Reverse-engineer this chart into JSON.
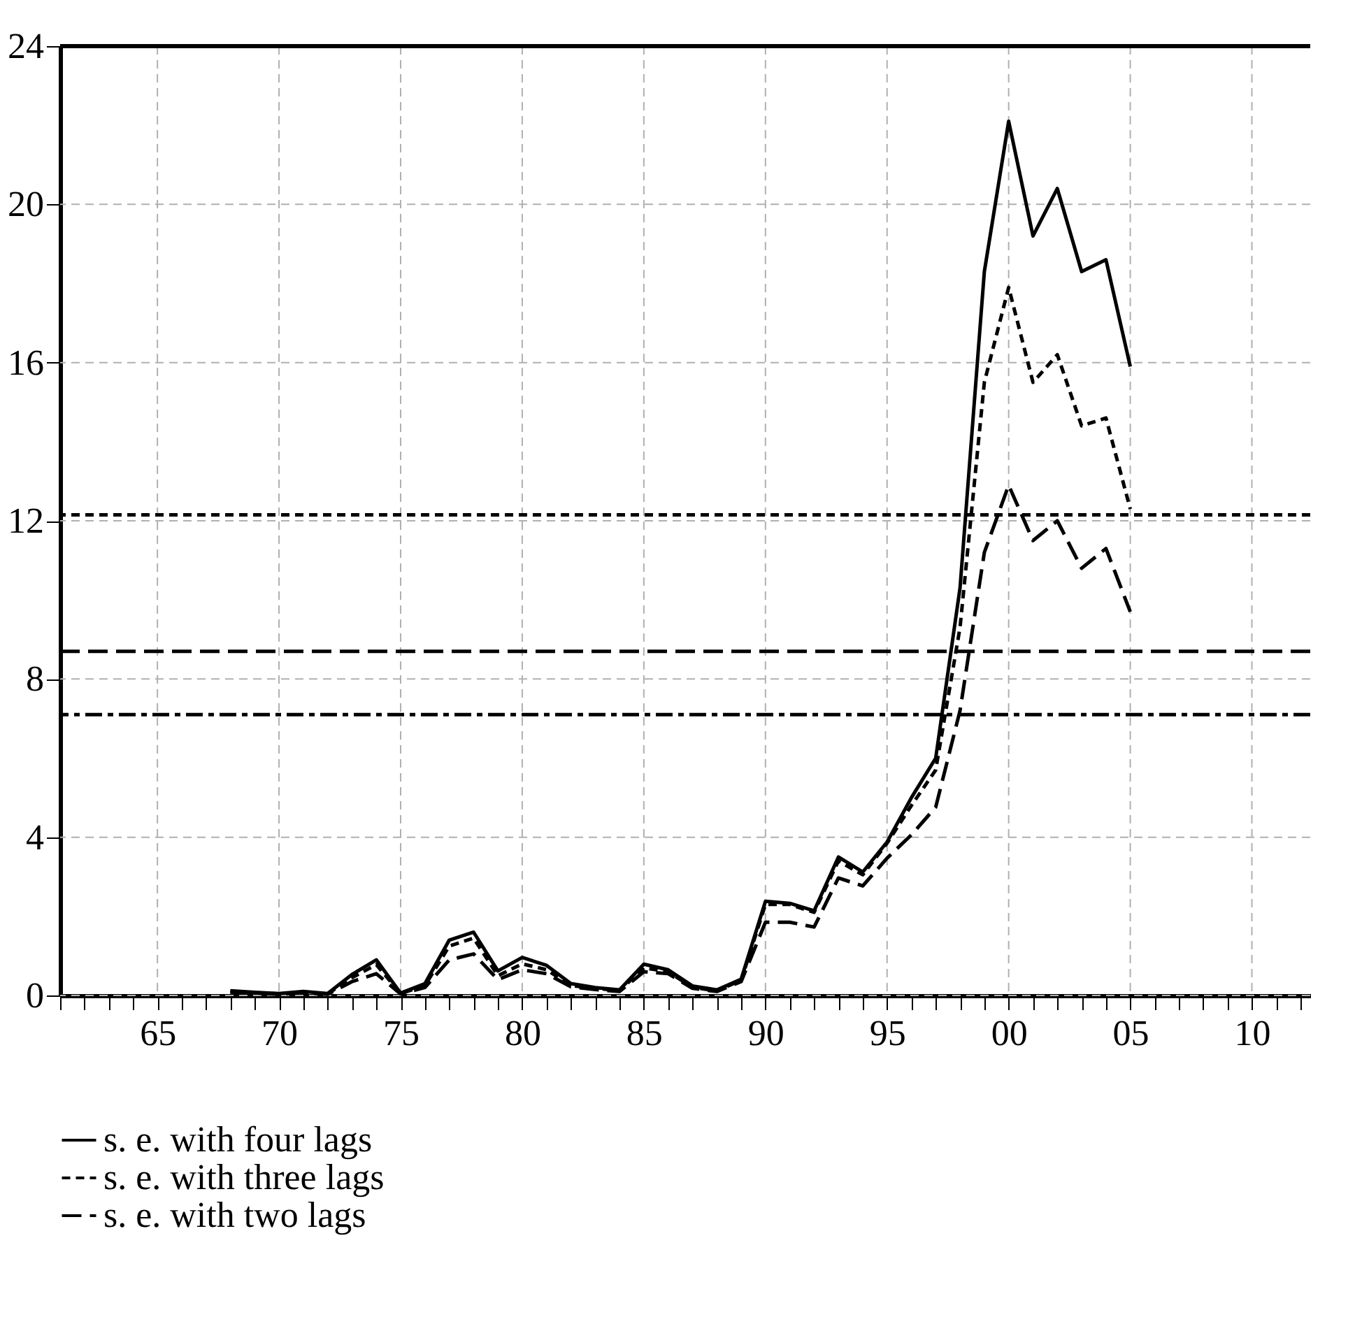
{
  "chart_data": {
    "type": "line",
    "x": [
      1968,
      1969,
      1970,
      1971,
      1972,
      1973,
      1974,
      1975,
      1976,
      1977,
      1978,
      1979,
      1980,
      1981,
      1982,
      1983,
      1984,
      1985,
      1986,
      1987,
      1988,
      1989,
      1990,
      1991,
      1992,
      1993,
      1994,
      1995,
      1996,
      1997,
      1998,
      1999,
      2000,
      2001,
      2002,
      2003,
      2004,
      2005
    ],
    "series": [
      {
        "name": "s. e. with four lags",
        "color": "#000000",
        "line_style": "solid",
        "values": [
          0.12,
          0.08,
          0.05,
          0.1,
          0.05,
          0.53,
          0.9,
          0.06,
          0.3,
          1.4,
          1.6,
          0.62,
          0.96,
          0.76,
          0.3,
          0.2,
          0.14,
          0.79,
          0.65,
          0.24,
          0.14,
          0.41,
          2.38,
          2.33,
          2.14,
          3.5,
          3.12,
          3.88,
          5.0,
          6.0,
          10.3,
          18.3,
          22.1,
          19.2,
          20.4,
          18.3,
          18.6,
          15.9
        ]
      },
      {
        "name": "s. e. with three lags",
        "color": "#000000",
        "line_style": "dashed",
        "values": [
          0.1,
          0.07,
          0.04,
          0.08,
          0.04,
          0.45,
          0.78,
          0.05,
          0.25,
          1.25,
          1.45,
          0.5,
          0.8,
          0.65,
          0.25,
          0.18,
          0.12,
          0.7,
          0.6,
          0.2,
          0.12,
          0.38,
          2.3,
          2.3,
          2.1,
          3.4,
          3.05,
          3.85,
          4.8,
          5.7,
          9.3,
          15.5,
          17.9,
          15.5,
          16.2,
          14.4,
          14.6,
          12.3
        ]
      },
      {
        "name": "s. e. with two lags",
        "color": "#000000",
        "line_style": "dashed",
        "values": [
          0.08,
          0.06,
          0.03,
          0.07,
          0.03,
          0.35,
          0.55,
          0.04,
          0.2,
          0.9,
          1.05,
          0.4,
          0.65,
          0.55,
          0.22,
          0.15,
          0.1,
          0.6,
          0.55,
          0.18,
          0.1,
          0.35,
          1.85,
          1.85,
          1.73,
          2.97,
          2.77,
          3.47,
          4.06,
          4.76,
          7.2,
          11.2,
          12.9,
          11.5,
          12.0,
          10.8,
          11.3,
          9.7
        ]
      }
    ],
    "xlim": [
      1961,
      2012.4
    ],
    "xticks": [
      {
        "value": 1961,
        "label": null
      },
      {
        "value": 1962,
        "label": null
      },
      {
        "value": 1963,
        "label": null
      },
      {
        "value": 1964,
        "label": null
      },
      {
        "value": 1965,
        "label": "65"
      },
      {
        "value": 1966,
        "label": null
      },
      {
        "value": 1967,
        "label": null
      },
      {
        "value": 1968,
        "label": null
      },
      {
        "value": 1969,
        "label": null
      },
      {
        "value": 1970,
        "label": "70"
      },
      {
        "value": 1971,
        "label": null
      },
      {
        "value": 1972,
        "label": null
      },
      {
        "value": 1973,
        "label": null
      },
      {
        "value": 1974,
        "label": null
      },
      {
        "value": 1975,
        "label": "75"
      },
      {
        "value": 1976,
        "label": null
      },
      {
        "value": 1977,
        "label": null
      },
      {
        "value": 1978,
        "label": null
      },
      {
        "value": 1979,
        "label": null
      },
      {
        "value": 1980,
        "label": "80"
      },
      {
        "value": 1981,
        "label": null
      },
      {
        "value": 1982,
        "label": null
      },
      {
        "value": 1983,
        "label": null
      },
      {
        "value": 1984,
        "label": null
      },
      {
        "value": 1985,
        "label": "85"
      },
      {
        "value": 1986,
        "label": null
      },
      {
        "value": 1987,
        "label": null
      },
      {
        "value": 1988,
        "label": null
      },
      {
        "value": 1989,
        "label": null
      },
      {
        "value": 1990,
        "label": "90"
      },
      {
        "value": 1991,
        "label": null
      },
      {
        "value": 1992,
        "label": null
      },
      {
        "value": 1993,
        "label": null
      },
      {
        "value": 1994,
        "label": null
      },
      {
        "value": 1995,
        "label": "95"
      },
      {
        "value": 1996,
        "label": null
      },
      {
        "value": 1997,
        "label": null
      },
      {
        "value": 1998,
        "label": null
      },
      {
        "value": 1999,
        "label": null
      },
      {
        "value": 2000,
        "label": "00"
      },
      {
        "value": 2001,
        "label": null
      },
      {
        "value": 2002,
        "label": null
      },
      {
        "value": 2003,
        "label": null
      },
      {
        "value": 2004,
        "label": null
      },
      {
        "value": 2005,
        "label": "05"
      },
      {
        "value": 2006,
        "label": null
      },
      {
        "value": 2007,
        "label": null
      },
      {
        "value": 2008,
        "label": null
      },
      {
        "value": 2009,
        "label": null
      },
      {
        "value": 2010,
        "label": "10"
      },
      {
        "value": 2011,
        "label": null
      },
      {
        "value": 2012,
        "label": null
      }
    ],
    "ylim": [
      0,
      24
    ],
    "yticks": [
      0,
      4,
      8,
      12,
      16,
      20,
      24
    ],
    "grid": true,
    "legend": "bottom",
    "ref_lines": [
      {
        "axis": "y",
        "value": 12.15,
        "color": "#000000",
        "line_style": "dashed"
      },
      {
        "axis": "y",
        "value": 8.7,
        "color": "#000000",
        "line_style": "dashed"
      },
      {
        "axis": "y",
        "value": 7.1,
        "color": "#000000",
        "line_style": "dashed"
      }
    ]
  }
}
